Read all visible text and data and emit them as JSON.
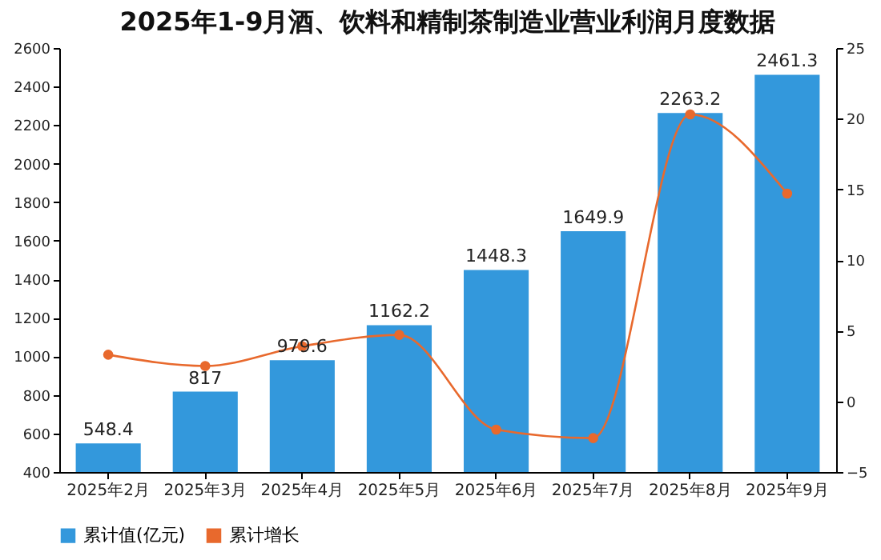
{
  "chart_data": {
    "type": "bar",
    "title": "2025年1-9月酒、饮料和精制茶制造业营业利润月度数据",
    "categories": [
      "2025年2月",
      "2025年3月",
      "2025年4月",
      "2025年5月",
      "2025年6月",
      "2025年7月",
      "2025年8月",
      "2025年9月"
    ],
    "series": [
      {
        "name": "累计值(亿元)",
        "color": "#3398dc",
        "values": [
          548.4,
          817,
          979.6,
          1162.2,
          1448.3,
          1649.9,
          2263.2,
          2461.3
        ],
        "value_labels": [
          "548.4",
          "817",
          "979.6",
          "1162.2",
          "1448.3",
          "1649.9",
          "2263.2",
          "2461.3"
        ]
      },
      {
        "name": "累计增长",
        "color": "#e8692d",
        "type": "line",
        "axis": "y2",
        "values": [
          3.3,
          2.5,
          3.9,
          4.7,
          -2.0,
          -2.6,
          20.3,
          14.7
        ]
      }
    ],
    "ylim": [
      400,
      2600
    ],
    "yticks": [
      400,
      600,
      800,
      1000,
      1200,
      1400,
      1600,
      1800,
      2000,
      2200,
      2400,
      2600
    ],
    "y2lim": [
      -5,
      25
    ],
    "y2ticks": [
      -5,
      0,
      5,
      10,
      15,
      20,
      25
    ],
    "marker": "circle",
    "legend": "bottom left"
  }
}
